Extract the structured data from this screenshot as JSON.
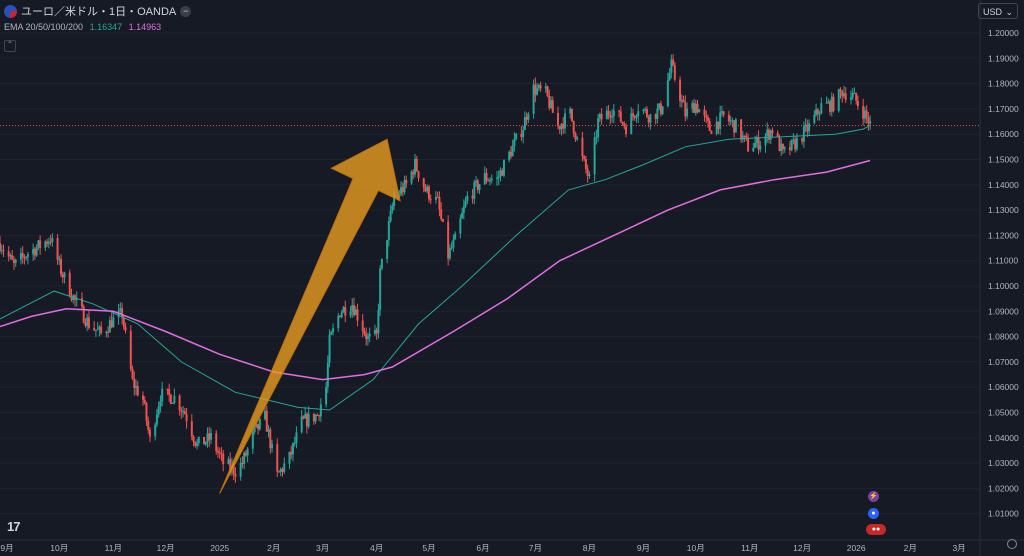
{
  "header": {
    "symbol": "ユーロ／米ドル・1日・OANDA",
    "indicator_name": "EMA 20/50/100/200",
    "ema_value_teal": "1.16347",
    "ema_value_pink": "1.14963",
    "currency": "USD",
    "logo_text": "17"
  },
  "colors": {
    "background": "#161a25",
    "up": "#26a69a",
    "down": "#ef5350",
    "ema_teal": "#26a69a",
    "ema_pink": "#e06fe0",
    "arrow": "#f0a020"
  },
  "chart_data": {
    "type": "candlestick",
    "ylim": [
      1.0,
      1.21
    ],
    "y_ticks": [
      "1.20000",
      "1.19000",
      "1.18000",
      "1.17000",
      "1.16000",
      "1.15000",
      "1.14000",
      "1.13000",
      "1.12000",
      "1.11000",
      "1.10000",
      "1.09000",
      "1.08000",
      "1.07000",
      "1.06000",
      "1.05000",
      "1.04000",
      "1.03000",
      "1.02000",
      "1.01000"
    ],
    "x_ticks": [
      "9月",
      "10月",
      "11月",
      "12月",
      "2025",
      "2月",
      "3月",
      "4月",
      "5月",
      "6月",
      "7月",
      "8月",
      "9月",
      "10月",
      "11月",
      "12月",
      "2026",
      "2月",
      "3月"
    ],
    "x_range": [
      "2024-08-28",
      "2026-03-13"
    ],
    "last_price": 1.1634,
    "price_path": [
      [
        "2024-08-28",
        1.117
      ],
      [
        "2024-09-05",
        1.108
      ],
      [
        "2024-09-13",
        1.113
      ],
      [
        "2024-09-20",
        1.116
      ],
      [
        "2024-09-26",
        1.119
      ],
      [
        "2024-10-02",
        1.106
      ],
      [
        "2024-10-10",
        1.094
      ],
      [
        "2024-10-18",
        1.085
      ],
      [
        "2024-10-25",
        1.081
      ],
      [
        "2024-10-31",
        1.086
      ],
      [
        "2024-11-06",
        1.089
      ],
      [
        "2024-11-12",
        1.062
      ],
      [
        "2024-11-18",
        1.055
      ],
      [
        "2024-11-22",
        1.039
      ],
      [
        "2024-11-28",
        1.057
      ],
      [
        "2024-12-06",
        1.056
      ],
      [
        "2024-12-12",
        1.05
      ],
      [
        "2024-12-19",
        1.037
      ],
      [
        "2024-12-27",
        1.04
      ],
      [
        "2025-01-03",
        1.03
      ],
      [
        "2025-01-10",
        1.027
      ],
      [
        "2025-01-14",
        1.03
      ],
      [
        "2025-01-21",
        1.042
      ],
      [
        "2025-01-27",
        1.048
      ],
      [
        "2025-02-03",
        1.025
      ],
      [
        "2025-02-10",
        1.032
      ],
      [
        "2025-02-17",
        1.046
      ],
      [
        "2025-02-26",
        1.049
      ],
      [
        "2025-03-03",
        1.06
      ],
      [
        "2025-03-05",
        1.078
      ],
      [
        "2025-03-11",
        1.09
      ],
      [
        "2025-03-18",
        1.093
      ],
      [
        "2025-03-27",
        1.079
      ],
      [
        "2025-04-01",
        1.08
      ],
      [
        "2025-04-03",
        1.105
      ],
      [
        "2025-04-11",
        1.135
      ],
      [
        "2025-04-18",
        1.14
      ],
      [
        "2025-04-23",
        1.148
      ],
      [
        "2025-04-29",
        1.138
      ],
      [
        "2025-05-06",
        1.133
      ],
      [
        "2025-05-12",
        1.112
      ],
      [
        "2025-05-16",
        1.118
      ],
      [
        "2025-05-23",
        1.135
      ],
      [
        "2025-06-02",
        1.143
      ],
      [
        "2025-06-09",
        1.142
      ],
      [
        "2025-06-16",
        1.152
      ],
      [
        "2025-06-24",
        1.163
      ],
      [
        "2025-06-30",
        1.178
      ],
      [
        "2025-07-07",
        1.176
      ],
      [
        "2025-07-14",
        1.163
      ],
      [
        "2025-07-21",
        1.168
      ],
      [
        "2025-07-28",
        1.15
      ],
      [
        "2025-08-01",
        1.142
      ],
      [
        "2025-08-06",
        1.165
      ],
      [
        "2025-08-14",
        1.17
      ],
      [
        "2025-08-22",
        1.163
      ],
      [
        "2025-08-29",
        1.171
      ],
      [
        "2025-09-05",
        1.167
      ],
      [
        "2025-09-11",
        1.17
      ],
      [
        "2025-09-17",
        1.187
      ],
      [
        "2025-09-25",
        1.168
      ],
      [
        "2025-10-01",
        1.172
      ],
      [
        "2025-10-09",
        1.162
      ],
      [
        "2025-10-17",
        1.167
      ],
      [
        "2025-10-24",
        1.163
      ],
      [
        "2025-10-31",
        1.155
      ],
      [
        "2025-11-07",
        1.157
      ],
      [
        "2025-11-14",
        1.162
      ],
      [
        "2025-11-20",
        1.152
      ],
      [
        "2025-11-28",
        1.157
      ],
      [
        "2025-12-05",
        1.163
      ],
      [
        "2025-12-12",
        1.171
      ],
      [
        "2025-12-19",
        1.172
      ],
      [
        "2025-12-24",
        1.177
      ],
      [
        "2025-12-30",
        1.175
      ],
      [
        "2026-01-05",
        1.169
      ],
      [
        "2026-01-09",
        1.164
      ]
    ],
    "ema_teal": [
      [
        "2024-08-28",
        1.087
      ],
      [
        "2024-09-28",
        1.098
      ],
      [
        "2024-10-20",
        1.093
      ],
      [
        "2024-11-15",
        1.085
      ],
      [
        "2024-12-10",
        1.07
      ],
      [
        "2025-01-10",
        1.058
      ],
      [
        "2025-02-15",
        1.052
      ],
      [
        "2025-03-05",
        1.051
      ],
      [
        "2025-03-30",
        1.063
      ],
      [
        "2025-04-25",
        1.085
      ],
      [
        "2025-05-20",
        1.1
      ],
      [
        "2025-06-20",
        1.12
      ],
      [
        "2025-07-20",
        1.138
      ],
      [
        "2025-08-10",
        1.142
      ],
      [
        "2025-09-01",
        1.148
      ],
      [
        "2025-09-25",
        1.155
      ],
      [
        "2025-10-20",
        1.158
      ],
      [
        "2025-11-20",
        1.159
      ],
      [
        "2025-12-20",
        1.16
      ],
      [
        "2026-01-05",
        1.162
      ],
      [
        "2026-01-09",
        1.1635
      ]
    ],
    "ema_pink": [
      [
        "2024-08-28",
        1.084
      ],
      [
        "2024-09-15",
        1.088
      ],
      [
        "2024-10-05",
        1.091
      ],
      [
        "2024-11-01",
        1.09
      ],
      [
        "2024-12-01",
        1.082
      ],
      [
        "2025-01-01",
        1.073
      ],
      [
        "2025-02-01",
        1.066
      ],
      [
        "2025-03-01",
        1.063
      ],
      [
        "2025-03-25",
        1.065
      ],
      [
        "2025-04-10",
        1.068
      ],
      [
        "2025-05-15",
        1.082
      ],
      [
        "2025-06-15",
        1.095
      ],
      [
        "2025-07-15",
        1.11
      ],
      [
        "2025-08-15",
        1.12
      ],
      [
        "2025-09-15",
        1.13
      ],
      [
        "2025-10-15",
        1.138
      ],
      [
        "2025-11-15",
        1.142
      ],
      [
        "2025-12-15",
        1.145
      ],
      [
        "2026-01-09",
        1.1496
      ]
    ],
    "arrow": {
      "from": [
        "2025-01-01",
        1.018
      ],
      "to": [
        "2025-04-07",
        1.158
      ]
    }
  }
}
